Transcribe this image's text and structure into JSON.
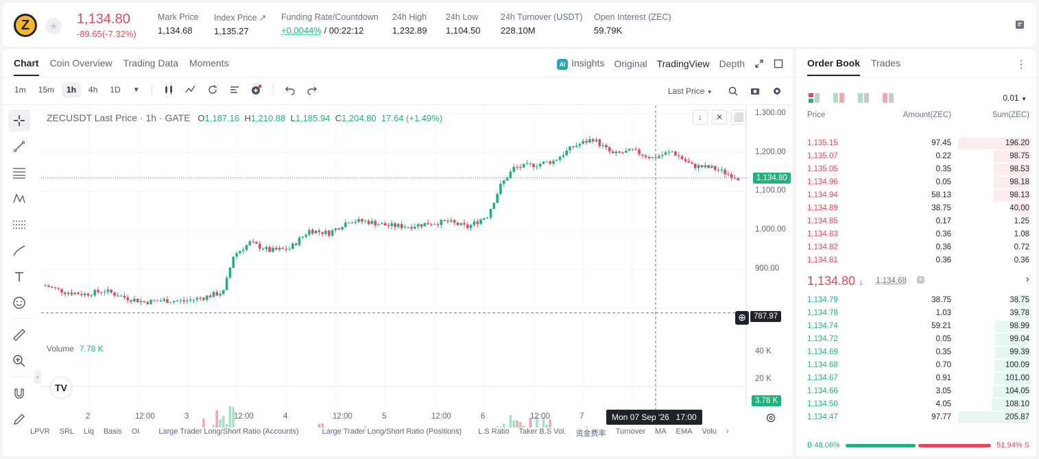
{
  "ticker": {
    "coin_logo": "Z",
    "last_price": "1,134.80",
    "change": "-89.65(-7.32%)",
    "stats": [
      {
        "label": "Mark Price",
        "value": "1,134.68"
      },
      {
        "label": "Index Price ↗",
        "value": "1,135.27"
      },
      {
        "label": "Funding Rate/Countdown",
        "value_green": "+0.0044%",
        "value": " / 00:22:12"
      },
      {
        "label": "24h High",
        "value": "1,232.89"
      },
      {
        "label": "24h Low",
        "value": "1,104.50"
      },
      {
        "label": "24h Turnover (USDT)",
        "value": "228.10M"
      },
      {
        "label": "Open Interest (ZEC)",
        "value": "59.79K"
      }
    ]
  },
  "chart_tabs": [
    "Chart",
    "Coin Overview",
    "Trading Data",
    "Moments"
  ],
  "view_tabs": {
    "ai_badge": "AI",
    "insights": "Insights",
    "original": "Original",
    "tradingview": "TradingView",
    "depth": "Depth"
  },
  "intervals": [
    "1m",
    "15m",
    "1h",
    "4h",
    "1D"
  ],
  "last_price_selector": "Last Price",
  "legend": {
    "symbol": "ZECUSDT Last Price · 1h · GATE",
    "o_label": "O",
    "o": "1,187.16",
    "h_label": "H",
    "h": "1,210.88",
    "l_label": "L",
    "l": "1,185.94",
    "c_label": "C",
    "c": "1,204.80",
    "change": "17.64 (+1.49%)"
  },
  "volume_legend": {
    "label": "Volume",
    "value": "7.78 K"
  },
  "price_tags": {
    "last": "1,134.80",
    "crosshair": "787.97",
    "volume": "3.78 K"
  },
  "crosshair_time": "Mon 07 Sep '26   17:00",
  "tv_logo": "TV",
  "chart_data": {
    "type": "candlestick",
    "symbol": "ZECUSDT",
    "interval": "1h",
    "y_ticks": [
      "1,300.00",
      "1,200.00",
      "1,100.00",
      "1,000.00",
      "900.00"
    ],
    "ylim": [
      740,
      1310
    ],
    "volume_ticks": [
      "40 K",
      "20 K"
    ],
    "x_ticks": [
      "2",
      "12:00",
      "3",
      "12:00",
      "4",
      "12:00",
      "5",
      "12:00",
      "6",
      "12:00",
      "7",
      "12:00"
    ],
    "trend_close": [
      [
        0,
        858
      ],
      [
        6,
        842
      ],
      [
        12,
        836
      ],
      [
        18,
        845
      ],
      [
        24,
        828
      ],
      [
        30,
        816
      ],
      [
        36,
        820
      ],
      [
        42,
        818
      ],
      [
        48,
        828
      ],
      [
        54,
        842
      ],
      [
        57,
        935
      ],
      [
        62,
        968
      ],
      [
        68,
        948
      ],
      [
        74,
        953
      ],
      [
        80,
        1000
      ],
      [
        86,
        993
      ],
      [
        92,
        1025
      ],
      [
        98,
        1022
      ],
      [
        104,
        1012
      ],
      [
        110,
        1010
      ],
      [
        116,
        1018
      ],
      [
        122,
        1022
      ],
      [
        128,
        1008
      ],
      [
        134,
        1038
      ],
      [
        138,
        1115
      ],
      [
        142,
        1160
      ],
      [
        148,
        1168
      ],
      [
        154,
        1178
      ],
      [
        160,
        1215
      ],
      [
        166,
        1235
      ],
      [
        172,
        1195
      ],
      [
        178,
        1204
      ],
      [
        184,
        1186
      ],
      [
        190,
        1202
      ],
      [
        196,
        1166
      ],
      [
        202,
        1160
      ],
      [
        206,
        1148
      ],
      [
        210,
        1134.8
      ]
    ],
    "volume_trend": [
      [
        0,
        0.12
      ],
      [
        20,
        0.11
      ],
      [
        40,
        0.06
      ],
      [
        56,
        0.95
      ],
      [
        60,
        0.25
      ],
      [
        74,
        0.3
      ],
      [
        80,
        0.55
      ],
      [
        88,
        0.32
      ],
      [
        96,
        0.45
      ],
      [
        104,
        0.35
      ],
      [
        112,
        0.3
      ],
      [
        124,
        0.35
      ],
      [
        134,
        0.4
      ],
      [
        140,
        0.65
      ],
      [
        146,
        0.5
      ],
      [
        150,
        0.62
      ],
      [
        158,
        0.35
      ],
      [
        166,
        0.42
      ],
      [
        172,
        0.28
      ],
      [
        180,
        0.22
      ],
      [
        190,
        0.28
      ],
      [
        200,
        0.18
      ],
      [
        210,
        0.2
      ]
    ]
  },
  "indicators": [
    "LPVR",
    "SRL",
    "Liq",
    "Basis",
    "OI",
    "Large Trader Long/Short Ratio (Accounts)",
    "Large Trader Long/Short Ratio (Positions)",
    "L.S Ratio",
    "Taker B.S Vol.",
    "资金费率",
    "Turnover",
    "MA",
    "EMA",
    "Volu"
  ],
  "orderbook": {
    "tabs": [
      "Order Book",
      "Trades"
    ],
    "precision": "0.01",
    "headers": {
      "price": "Price",
      "amount": "Amount(ZEC)",
      "sum": "Sum(ZEC)"
    },
    "asks": [
      {
        "price": "1,135.15",
        "amount": "97.45",
        "sum": "196.20",
        "depth": 1.0
      },
      {
        "price": "1,135.07",
        "amount": "0.22",
        "sum": "98.75",
        "depth": 0.5
      },
      {
        "price": "1,135.05",
        "amount": "0.35",
        "sum": "98.53",
        "depth": 0.5
      },
      {
        "price": "1,134.96",
        "amount": "0.05",
        "sum": "98.18",
        "depth": 0.5
      },
      {
        "price": "1,134.94",
        "amount": "58.13",
        "sum": "98.13",
        "depth": 0.5
      },
      {
        "price": "1,134.89",
        "amount": "38.75",
        "sum": "40.00",
        "depth": 0.2
      },
      {
        "price": "1,134.85",
        "amount": "0.17",
        "sum": "1.25",
        "depth": 0.0
      },
      {
        "price": "1,134.83",
        "amount": "0.36",
        "sum": "1.08",
        "depth": 0.0
      },
      {
        "price": "1,134.82",
        "amount": "0.36",
        "sum": "0.72",
        "depth": 0.0
      },
      {
        "price": "1,134.81",
        "amount": "0.36",
        "sum": "0.36",
        "depth": 0.0
      }
    ],
    "mid_price": "1,134.80",
    "mid_arrow": "↓",
    "mark_price": "1,134.68",
    "bids": [
      {
        "price": "1,134.79",
        "amount": "38.75",
        "sum": "38.75",
        "depth": 0.19
      },
      {
        "price": "1,134.78",
        "amount": "1.03",
        "sum": "39.78",
        "depth": 0.19
      },
      {
        "price": "1,134.74",
        "amount": "59.21",
        "sum": "98.99",
        "depth": 0.48
      },
      {
        "price": "1,134.72",
        "amount": "0.05",
        "sum": "99.04",
        "depth": 0.48
      },
      {
        "price": "1,134.69",
        "amount": "0.35",
        "sum": "99.39",
        "depth": 0.48
      },
      {
        "price": "1,134.68",
        "amount": "0.70",
        "sum": "100.09",
        "depth": 0.49
      },
      {
        "price": "1,134.67",
        "amount": "0.91",
        "sum": "101.00",
        "depth": 0.49
      },
      {
        "price": "1,134.66",
        "amount": "3.05",
        "sum": "104.05",
        "depth": 0.51
      },
      {
        "price": "1,134.50",
        "amount": "4.05",
        "sum": "108.10",
        "depth": 0.53
      },
      {
        "price": "1,134.47",
        "amount": "97.77",
        "sum": "205.87",
        "depth": 1.0
      }
    ],
    "buy_ratio": "48.06%",
    "sell_ratio": "51.94%",
    "buy_label": "B",
    "sell_label": "S",
    "buy_fraction": 0.4806
  },
  "colors": {
    "up": "#21b17c",
    "down": "#e5465b",
    "volume_up": "#a7e0c8",
    "volume_down": "#f2a7b3"
  },
  "icons": [
    "star-icon",
    "note-icon",
    "ai-insights-icon",
    "expand-icon",
    "window-icon",
    "candle-type-icon",
    "indicator-icon",
    "replay-icon",
    "template-icon",
    "add-alert-icon",
    "undo-icon",
    "redo-icon",
    "search-icon",
    "camera-icon",
    "settings-icon",
    "crosshair-icon",
    "trendline-icon",
    "fib-icon",
    "pattern-icon",
    "measure-icon",
    "brush-icon",
    "text-icon",
    "emoji-icon",
    "ruler-icon",
    "zoom-icon",
    "magnet-icon",
    "pencil-icon",
    "more-icon"
  ]
}
